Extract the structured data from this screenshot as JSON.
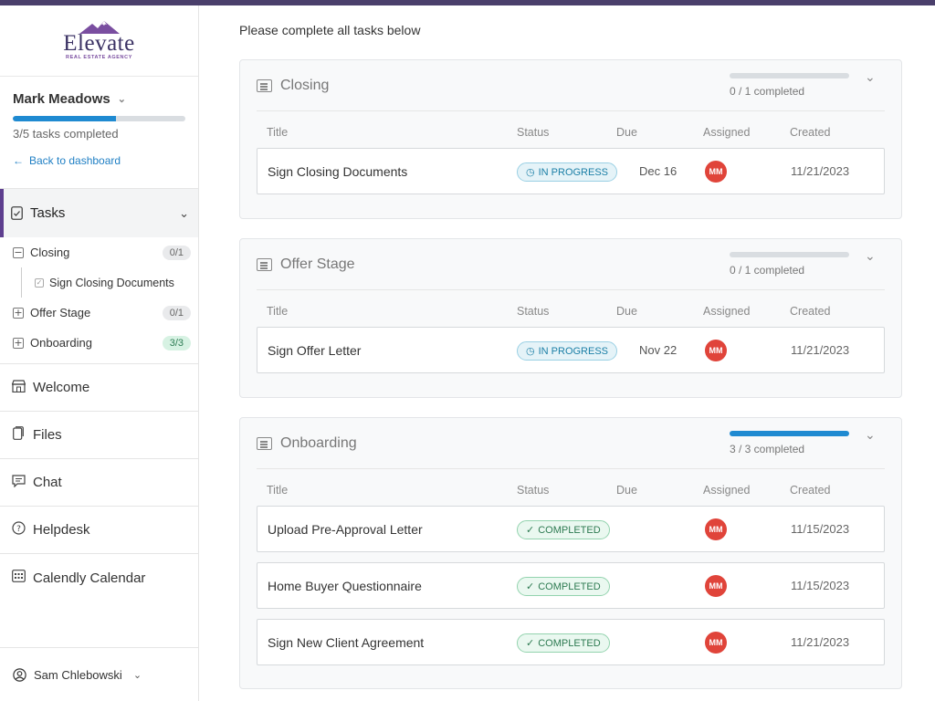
{
  "brand": {
    "name": "Elevate",
    "tagline": "REAL ESTATE AGENCY"
  },
  "colors": {
    "accent": "#1f8ad1",
    "nav_active": "#5e3f8f",
    "top_bar": "#4a3f6b",
    "avatar": "#e0443a"
  },
  "sidebar": {
    "user_name": "Mark Meadows",
    "progress_fraction": 0.6,
    "tasks_completed_label": "3/5 tasks completed",
    "back_label": "Back to dashboard",
    "tasks_nav_label": "Tasks",
    "groups": [
      {
        "label": "Closing",
        "count": "0/1",
        "expanded": true,
        "children": [
          "Sign Closing Documents"
        ]
      },
      {
        "label": "Offer Stage",
        "count": "0/1",
        "expanded": false
      },
      {
        "label": "Onboarding",
        "count": "3/3",
        "expanded": false
      }
    ],
    "nav_items": [
      {
        "label": "Welcome",
        "icon": "storefront-icon"
      },
      {
        "label": "Files",
        "icon": "file-icon"
      },
      {
        "label": "Chat",
        "icon": "chat-icon"
      },
      {
        "label": "Helpdesk",
        "icon": "help-circle-icon"
      },
      {
        "label": "Calendly Calendar",
        "icon": "calendar-icon"
      }
    ],
    "footer_user": "Sam Chlebowski"
  },
  "main": {
    "intro": "Please complete all tasks below",
    "columns": {
      "title": "Title",
      "status": "Status",
      "due": "Due",
      "assigned": "Assigned",
      "created": "Created"
    },
    "sections": [
      {
        "title": "Closing",
        "progress_fraction": 0,
        "completed_label": "0 / 1 completed",
        "tasks": [
          {
            "title": "Sign Closing Documents",
            "status": "IN PROGRESS",
            "state": "inprog",
            "due": "Dec 16",
            "assigned": "MM",
            "created": "11/21/2023"
          }
        ]
      },
      {
        "title": "Offer Stage",
        "progress_fraction": 0,
        "completed_label": "0 / 1 completed",
        "tasks": [
          {
            "title": "Sign Offer Letter",
            "status": "IN PROGRESS",
            "state": "inprog",
            "due": "Nov 22",
            "assigned": "MM",
            "created": "11/21/2023"
          }
        ]
      },
      {
        "title": "Onboarding",
        "progress_fraction": 1,
        "completed_label": "3 / 3 completed",
        "tasks": [
          {
            "title": "Upload Pre-Approval Letter",
            "status": "COMPLETED",
            "state": "done",
            "due": "",
            "assigned": "MM",
            "created": "11/15/2023"
          },
          {
            "title": "Home Buyer Questionnaire",
            "status": "COMPLETED",
            "state": "done",
            "due": "",
            "assigned": "MM",
            "created": "11/15/2023"
          },
          {
            "title": "Sign New Client Agreement",
            "status": "COMPLETED",
            "state": "done",
            "due": "",
            "assigned": "MM",
            "created": "11/21/2023"
          }
        ]
      }
    ]
  }
}
